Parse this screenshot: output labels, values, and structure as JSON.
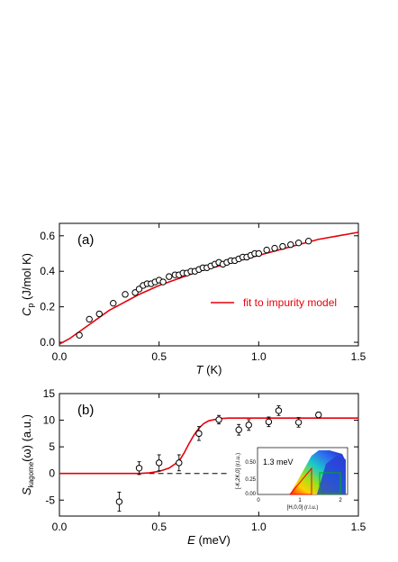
{
  "chart_data": [
    {
      "type": "scatter",
      "panel_label": "(a)",
      "xlabel_var": "T",
      "xlabel_unit": " (K)",
      "ylabel_main": "C",
      "ylabel_sub": "p",
      "ylabel_unit": " (J/mol K)",
      "xlim": [
        0,
        1.5
      ],
      "ylim": [
        -0.02,
        0.67
      ],
      "xticks": [
        "0.0",
        "0.5",
        "1.0",
        "1.5"
      ],
      "xtick_values": [
        0,
        0.5,
        1.0,
        1.5
      ],
      "yticks": [
        "0.0",
        "0.2",
        "0.4",
        "0.6"
      ],
      "ytick_values": [
        0,
        0.2,
        0.4,
        0.6
      ],
      "legend": {
        "label": "fit to impurity model",
        "color": "#e8000b",
        "placement": "middle-right"
      },
      "series": [
        {
          "kind": "points",
          "x": [
            0.1,
            0.15,
            0.2,
            0.27,
            0.33,
            0.38,
            0.4,
            0.42,
            0.44,
            0.46,
            0.48,
            0.5,
            0.52,
            0.55,
            0.58,
            0.6,
            0.62,
            0.64,
            0.66,
            0.68,
            0.7,
            0.72,
            0.74,
            0.76,
            0.78,
            0.8,
            0.82,
            0.84,
            0.86,
            0.88,
            0.9,
            0.92,
            0.94,
            0.96,
            0.98,
            1.0,
            1.04,
            1.08,
            1.12,
            1.16,
            1.2,
            1.25
          ],
          "y": [
            0.04,
            0.13,
            0.16,
            0.22,
            0.27,
            0.28,
            0.3,
            0.32,
            0.33,
            0.33,
            0.34,
            0.35,
            0.34,
            0.37,
            0.38,
            0.38,
            0.39,
            0.39,
            0.4,
            0.4,
            0.41,
            0.42,
            0.42,
            0.43,
            0.44,
            0.45,
            0.44,
            0.45,
            0.46,
            0.46,
            0.47,
            0.48,
            0.48,
            0.49,
            0.5,
            0.5,
            0.52,
            0.53,
            0.54,
            0.55,
            0.56,
            0.57
          ]
        },
        {
          "kind": "line",
          "color": "#e8000b",
          "x": [
            0.0,
            0.05,
            0.1,
            0.15,
            0.2,
            0.25,
            0.3,
            0.35,
            0.4,
            0.5,
            0.6,
            0.7,
            0.8,
            0.9,
            1.0,
            1.1,
            1.2,
            1.3,
            1.4,
            1.5
          ],
          "y": [
            -0.01,
            0.02,
            0.06,
            0.1,
            0.14,
            0.18,
            0.21,
            0.24,
            0.27,
            0.32,
            0.36,
            0.4,
            0.43,
            0.46,
            0.49,
            0.52,
            0.55,
            0.58,
            0.6,
            0.62
          ]
        }
      ]
    },
    {
      "type": "scatter",
      "panel_label": "(b)",
      "xlabel_var": "E",
      "xlabel_unit": " (meV)",
      "ylabel_main": "S",
      "ylabel_sub": "kagome",
      "ylabel_unit": "(ω) (a.u.)",
      "xlim": [
        0,
        1.5
      ],
      "ylim": [
        -8,
        15
      ],
      "xticks": [
        "0.0",
        "0.5",
        "1.0",
        "1.5"
      ],
      "xtick_values": [
        0,
        0.5,
        1.0,
        1.5
      ],
      "yticks": [
        "-5",
        "0",
        "5",
        "10",
        "15"
      ],
      "ytick_values": [
        -5,
        0,
        5,
        10,
        15
      ],
      "series": [
        {
          "kind": "points_err",
          "x": [
            0.3,
            0.4,
            0.5,
            0.6,
            0.7,
            0.8,
            0.9,
            0.95,
            1.05,
            1.1,
            1.2,
            1.3
          ],
          "y": [
            -5.3,
            1.0,
            2.0,
            2.0,
            7.5,
            10.1,
            8.2,
            9.1,
            9.7,
            11.8,
            9.6,
            11.0
          ],
          "err": [
            1.8,
            1.2,
            1.5,
            1.5,
            1.3,
            0.8,
            1.0,
            1.0,
            0.9,
            0.9,
            0.9,
            0.5
          ]
        },
        {
          "kind": "line",
          "color": "#e8000b",
          "x": [
            0.0,
            0.4,
            0.45,
            0.5,
            0.55,
            0.6,
            0.625,
            0.65,
            0.675,
            0.7,
            0.725,
            0.75,
            0.8,
            0.85,
            0.9,
            1.0,
            1.5
          ],
          "y": [
            0,
            0,
            0.1,
            0.4,
            1.0,
            2.3,
            3.8,
            5.6,
            7.2,
            8.5,
            9.4,
            9.9,
            10.3,
            10.4,
            10.4,
            10.4,
            10.4
          ]
        },
        {
          "kind": "dashed",
          "color": "#000000",
          "x": [
            0.45,
            0.85
          ],
          "y": [
            0,
            0
          ]
        }
      ],
      "inset": {
        "label": "1.3 meV",
        "xlabel": "[H,0,0] (r.l.u.)",
        "ylabel": "[-K,2K,0] (r.l.u.)",
        "xticks": [
          "0",
          "1",
          "2"
        ],
        "yticks": [
          "0.00",
          "0.25",
          "0.50"
        ]
      }
    }
  ]
}
